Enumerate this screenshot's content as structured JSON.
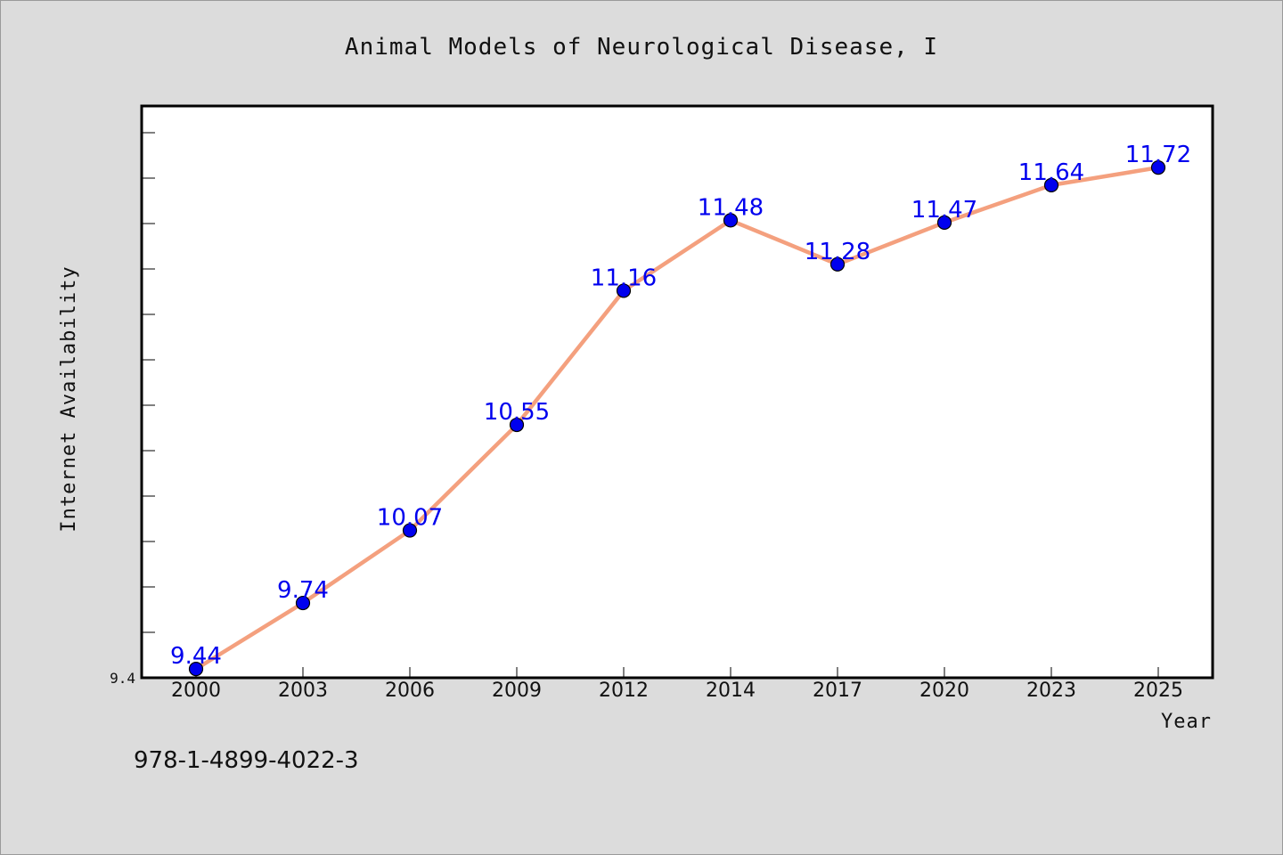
{
  "chart_data": {
    "type": "line",
    "title": "Animal Models of Neurological Disease, I",
    "xlabel": "Year",
    "ylabel": "Internet Availability",
    "categories": [
      "2000",
      "2003",
      "2006",
      "2009",
      "2012",
      "2014",
      "2017",
      "2020",
      "2023",
      "2025"
    ],
    "series": [
      {
        "values": [
          9.44,
          9.74,
          10.07,
          10.55,
          11.16,
          11.48,
          11.28,
          11.47,
          11.64,
          11.72
        ],
        "labels": [
          "9.44",
          "9.74",
          "10.07",
          "10.55",
          "11.16",
          "11.48",
          "11.28",
          "11.47",
          "11.64",
          "11.72"
        ]
      }
    ],
    "ylim": [
      9.4,
      12.0
    ],
    "yticks": [
      "9.4"
    ],
    "grid": false,
    "footnote": "978-1-4899-4022-3",
    "colors": {
      "line": "#f4a07e",
      "marker": "#0000ee",
      "label": "#0000ee",
      "background": "#dcdcdc",
      "plot_background": "#ffffff"
    }
  }
}
